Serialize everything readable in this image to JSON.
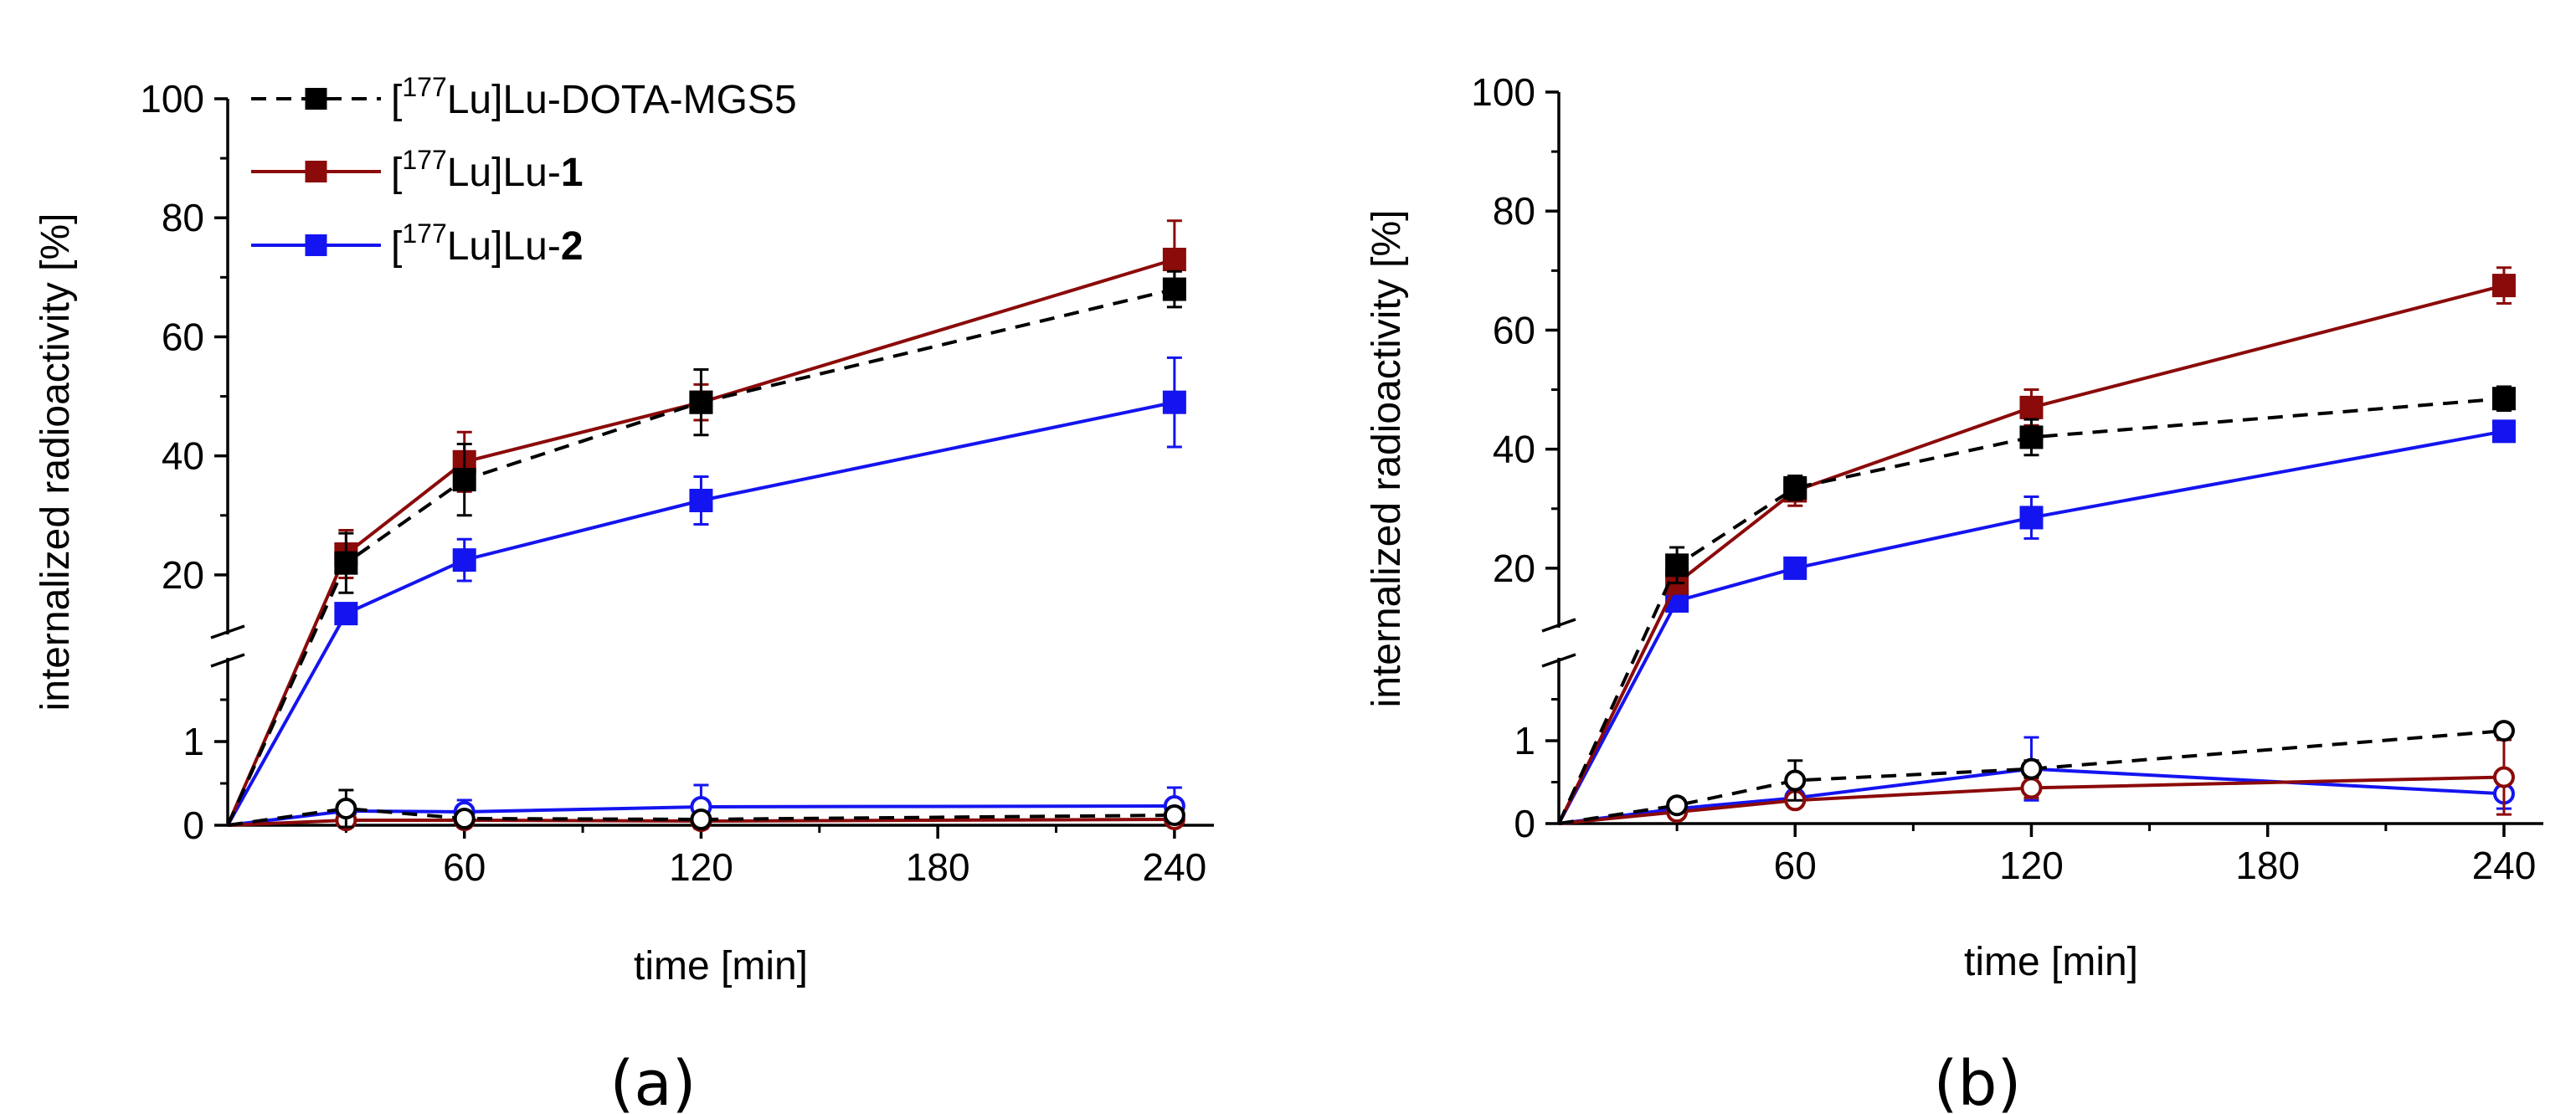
{
  "chart_data": [
    {
      "type": "line",
      "panel_label": "(a)",
      "xlabel": "time [min]",
      "ylabel": "internalized radioactivity [%]",
      "xlim": [
        0,
        250
      ],
      "x_ticks": [
        60,
        120,
        180,
        240
      ],
      "x_tick_labels": [
        "60",
        "120",
        "180",
        "240"
      ],
      "y_axis_break": true,
      "y_lower": {
        "range": [
          0,
          2
        ],
        "ticks": [
          0,
          1
        ],
        "tick_labels": [
          "0",
          "1"
        ]
      },
      "y_upper": {
        "range": [
          10,
          100
        ],
        "ticks": [
          20,
          40,
          60,
          80,
          100
        ],
        "tick_labels": [
          "20",
          "40",
          "60",
          "80",
          "100"
        ]
      },
      "legend": {
        "placement": "top-left",
        "entries": [
          {
            "prefix": "[",
            "sup": "177",
            "mid": "Lu]Lu-",
            "bold": "",
            "tail": "DOTA-MGS5",
            "color": "#000000",
            "style": "dashed"
          },
          {
            "prefix": "[",
            "sup": "177",
            "mid": "Lu]Lu-",
            "bold": "1",
            "tail": "",
            "color": "#8B0A0A",
            "style": "solid"
          },
          {
            "prefix": "[",
            "sup": "177",
            "mid": "Lu]Lu-",
            "bold": "2",
            "tail": "",
            "color": "#1414F0",
            "style": "solid"
          }
        ]
      },
      "series": [
        {
          "name": "[177Lu]Lu-DOTA-MGS5 internalized",
          "color": "#000000",
          "style": "dashed",
          "marker": "filled-square",
          "x": [
            0,
            30,
            60,
            120,
            240
          ],
          "y": [
            0,
            22,
            36,
            49,
            68
          ],
          "err": [
            0,
            5,
            6,
            5.5,
            3
          ]
        },
        {
          "name": "[177Lu]Lu-1 internalized",
          "color": "#8B0A0A",
          "style": "solid",
          "marker": "filled-square",
          "x": [
            0,
            30,
            60,
            120,
            240
          ],
          "y": [
            0,
            23.5,
            39,
            49,
            73
          ],
          "err": [
            0,
            4,
            5,
            3,
            6.5
          ]
        },
        {
          "name": "[177Lu]Lu-2 internalized",
          "color": "#1414F0",
          "style": "solid",
          "marker": "filled-square",
          "x": [
            0,
            30,
            60,
            120,
            240
          ],
          "y": [
            0,
            13.5,
            22.5,
            32.5,
            49
          ],
          "err": [
            0,
            1,
            3.5,
            4,
            7.5
          ]
        },
        {
          "name": "[177Lu]Lu-DOTA-MGS5 lower",
          "color": "#000000",
          "style": "dashed",
          "marker": "open-circle",
          "x": [
            0,
            30,
            60,
            120,
            240
          ],
          "y": [
            0,
            0.2,
            0.08,
            0.07,
            0.12
          ],
          "err": [
            0,
            0.22,
            0.06,
            0.05,
            0.06
          ]
        },
        {
          "name": "[177Lu]Lu-1 lower",
          "color": "#8B0A0A",
          "style": "solid",
          "marker": "open-circle",
          "x": [
            0,
            30,
            60,
            120,
            240
          ],
          "y": [
            0,
            0.06,
            0.06,
            0.05,
            0.07
          ],
          "err": [
            0,
            0.03,
            0.03,
            0.02,
            0.03
          ]
        },
        {
          "name": "[177Lu]Lu-2 lower",
          "color": "#1414F0",
          "style": "solid",
          "marker": "open-circle",
          "x": [
            0,
            30,
            60,
            120,
            240
          ],
          "y": [
            0,
            0.17,
            0.16,
            0.22,
            0.23
          ],
          "err": [
            0,
            0.06,
            0.14,
            0.26,
            0.22
          ]
        }
      ]
    },
    {
      "type": "line",
      "panel_label": "(b)",
      "xlabel": "time [min]",
      "ylabel": "internalized radioactivity [%]",
      "xlim": [
        0,
        250
      ],
      "x_ticks": [
        60,
        120,
        180,
        240
      ],
      "x_tick_labels": [
        "60",
        "120",
        "180",
        "240"
      ],
      "y_axis_break": true,
      "y_lower": {
        "range": [
          0,
          2
        ],
        "ticks": [
          0,
          1
        ],
        "tick_labels": [
          "0",
          "1"
        ]
      },
      "y_upper": {
        "range": [
          10,
          100
        ],
        "ticks": [
          20,
          40,
          60,
          80,
          100
        ],
        "tick_labels": [
          "20",
          "40",
          "60",
          "80",
          "100"
        ]
      },
      "series": [
        {
          "name": "[177Lu]Lu-DOTA-MGS5 internalized",
          "color": "#000000",
          "style": "dashed",
          "marker": "filled-square",
          "x": [
            0,
            30,
            60,
            120,
            240
          ],
          "y": [
            0,
            20.5,
            33.5,
            42,
            48.5
          ],
          "err": [
            0,
            3,
            2,
            3,
            2
          ]
        },
        {
          "name": "[177Lu]Lu-1 internalized",
          "color": "#8B0A0A",
          "style": "solid",
          "marker": "filled-square",
          "x": [
            0,
            30,
            60,
            120,
            240
          ],
          "y": [
            0,
            17.5,
            33,
            47,
            67.5
          ],
          "err": [
            0,
            1.5,
            2.5,
            3,
            3
          ]
        },
        {
          "name": "[177Lu]Lu-2 internalized",
          "color": "#1414F0",
          "style": "solid",
          "marker": "filled-square",
          "x": [
            0,
            30,
            60,
            120,
            240
          ],
          "y": [
            0,
            14.5,
            20,
            28.5,
            43
          ],
          "err": [
            0,
            1,
            1.5,
            3.5,
            1.5
          ]
        },
        {
          "name": "[177Lu]Lu-DOTA-MGS5 lower",
          "color": "#000000",
          "style": "dashed",
          "marker": "open-circle",
          "x": [
            0,
            30,
            60,
            120,
            240
          ],
          "y": [
            0,
            0.22,
            0.52,
            0.66,
            1.12
          ],
          "err": [
            0,
            0.04,
            0.24,
            0.1,
            0.05
          ]
        },
        {
          "name": "[177Lu]Lu-1 lower",
          "color": "#8B0A0A",
          "style": "solid",
          "marker": "open-circle",
          "x": [
            0,
            30,
            60,
            120,
            240
          ],
          "y": [
            0,
            0.14,
            0.28,
            0.43,
            0.56
          ],
          "err": [
            0,
            0.04,
            0.05,
            0.12,
            0.45
          ]
        },
        {
          "name": "[177Lu]Lu-2 lower",
          "color": "#1414F0",
          "style": "solid",
          "marker": "open-circle",
          "x": [
            0,
            30,
            60,
            120,
            240
          ],
          "y": [
            0,
            0.18,
            0.31,
            0.66,
            0.36
          ],
          "err": [
            0,
            0.04,
            0.08,
            0.38,
            0.18
          ]
        }
      ]
    }
  ]
}
